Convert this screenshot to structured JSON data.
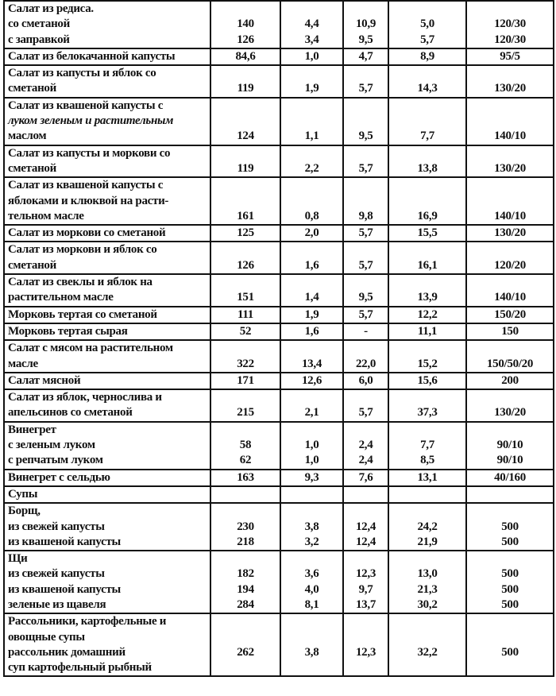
{
  "rows": [
    {
      "label": [
        "Салат из редиса.",
        "со сметаной",
        "с заправкой"
      ],
      "cols": [
        [
          "",
          "140",
          "126"
        ],
        [
          "",
          "4,4",
          "3,4"
        ],
        [
          "",
          "10,9",
          "9,5"
        ],
        [
          "",
          "5,0",
          "5,7"
        ],
        [
          "",
          "120/30",
          "120/30"
        ]
      ]
    },
    {
      "label": [
        "Салат из белокачанной капусты"
      ],
      "cols": [
        [
          "84,6"
        ],
        [
          "1,0"
        ],
        [
          "4,7"
        ],
        [
          "8,9"
        ],
        [
          "95/5"
        ]
      ]
    },
    {
      "label": [
        "Салат из капусты и яблок со",
        "сметаной"
      ],
      "cols": [
        [
          "",
          "119"
        ],
        [
          "",
          "1,9"
        ],
        [
          "",
          "5,7"
        ],
        [
          "",
          "14,3"
        ],
        [
          "",
          "130/20"
        ]
      ]
    },
    {
      "label": [
        "Салат из квашеной капусты с",
        "луком зеленым и растительным",
        "маслом"
      ],
      "cols": [
        [
          "",
          "",
          "124"
        ],
        [
          "",
          "",
          "1,1"
        ],
        [
          "",
          "",
          "9,5"
        ],
        [
          "",
          "",
          "7,7"
        ],
        [
          "",
          "",
          "140/10"
        ]
      ]
    },
    {
      "label": [
        "Салат из капусты и моркови со",
        "сметаной"
      ],
      "cols": [
        [
          "",
          "119"
        ],
        [
          "",
          "2,2"
        ],
        [
          "",
          "5,7"
        ],
        [
          "",
          "13,8"
        ],
        [
          "",
          "130/20"
        ]
      ]
    },
    {
      "label": [
        "Салат из квашеной капусты с",
        "яблоками и клюквой на расти-",
        "тельном масле"
      ],
      "cols": [
        [
          "",
          "",
          "161"
        ],
        [
          "",
          "",
          "0,8"
        ],
        [
          "",
          "",
          "9,8"
        ],
        [
          "",
          "",
          "16,9"
        ],
        [
          "",
          "",
          "140/10"
        ]
      ]
    },
    {
      "label": [
        "Салат из моркови со сметаной"
      ],
      "cols": [
        [
          "125"
        ],
        [
          "2,0"
        ],
        [
          "5,7"
        ],
        [
          "15,5"
        ],
        [
          "130/20"
        ]
      ]
    },
    {
      "label": [
        "Салат из моркови и яблок со",
        "сметаной"
      ],
      "cols": [
        [
          "",
          "126"
        ],
        [
          "",
          "1,6"
        ],
        [
          "",
          "5,7"
        ],
        [
          "",
          "16,1"
        ],
        [
          "",
          "120/20"
        ]
      ]
    },
    {
      "label": [
        "Салат из свеклы и яблок на",
        "растительном масле"
      ],
      "cols": [
        [
          "",
          "151"
        ],
        [
          "",
          "1,4"
        ],
        [
          "",
          "9,5"
        ],
        [
          "",
          "13,9"
        ],
        [
          "",
          "140/10"
        ]
      ]
    },
    {
      "label": [
        "Морковь тертая со сметаной"
      ],
      "cols": [
        [
          "111"
        ],
        [
          "1,9"
        ],
        [
          "5,7"
        ],
        [
          "12,2"
        ],
        [
          "150/20"
        ]
      ]
    },
    {
      "label": [
        "Морковь тертая сырая"
      ],
      "cols": [
        [
          "52"
        ],
        [
          "1,6"
        ],
        [
          "-"
        ],
        [
          "11,1"
        ],
        [
          "150"
        ]
      ]
    },
    {
      "label": [
        "Салат с мясом на растительном",
        "масле"
      ],
      "cols": [
        [
          "",
          "322"
        ],
        [
          "",
          "13,4"
        ],
        [
          "",
          "22,0"
        ],
        [
          "",
          "15,2"
        ],
        [
          "",
          "150/50/20"
        ]
      ]
    },
    {
      "label": [
        "Салат мясной"
      ],
      "cols": [
        [
          "171"
        ],
        [
          "12,6"
        ],
        [
          "6,0"
        ],
        [
          "15,6"
        ],
        [
          "200"
        ]
      ]
    },
    {
      "label": [
        "Салат из яблок, чернослива и",
        "апельсинов со сметаной"
      ],
      "cols": [
        [
          "",
          "215"
        ],
        [
          "",
          "2,1"
        ],
        [
          "",
          "5,7"
        ],
        [
          "",
          "37,3"
        ],
        [
          "",
          "130/20"
        ]
      ]
    },
    {
      "label": [
        "Винегрет",
        "с зеленым луком",
        "с репчатым луком"
      ],
      "cols": [
        [
          "",
          "58",
          "62"
        ],
        [
          "",
          "1,0",
          "1,0"
        ],
        [
          "",
          "2,4",
          "2,4"
        ],
        [
          "",
          "7,7",
          "8,5"
        ],
        [
          "",
          "90/10",
          "90/10"
        ]
      ]
    },
    {
      "label": [
        "Винегрет с сельдью"
      ],
      "cols": [
        [
          "163"
        ],
        [
          "9,3"
        ],
        [
          "7,6"
        ],
        [
          "13,1"
        ],
        [
          "40/160"
        ]
      ]
    },
    {
      "label": [
        "Супы"
      ],
      "cols": [
        [
          ""
        ],
        [
          ""
        ],
        [
          ""
        ],
        [
          ""
        ],
        [
          ""
        ]
      ]
    },
    {
      "label": [
        "Борщ,",
        "из свежей капусты",
        "из квашеной капусты"
      ],
      "cols": [
        [
          "",
          "230",
          "218"
        ],
        [
          "",
          "3,8",
          "3,2"
        ],
        [
          "",
          "12,4",
          "12,4"
        ],
        [
          "",
          "24,2",
          "21,9"
        ],
        [
          "",
          "500",
          "500"
        ]
      ]
    },
    {
      "label": [
        "Щи",
        "из свежей капусты",
        "из квашеной капусты",
        "зеленые из щавеля"
      ],
      "cols": [
        [
          "",
          "182",
          "194",
          "284"
        ],
        [
          "",
          "3,6",
          "4,0",
          "8,1"
        ],
        [
          "",
          "12,3",
          "9,7",
          "13,7"
        ],
        [
          "",
          "13,0",
          "21,3",
          "30,2"
        ],
        [
          "",
          "500",
          "500",
          "500"
        ]
      ]
    },
    {
      "label": [
        "Рассольники, картофельные и",
        "овощные супы",
        "рассольник домашний",
        "суп картофельный рыбный"
      ],
      "cols": [
        [
          "",
          "",
          "262",
          ""
        ],
        [
          "",
          "",
          "3,8",
          ""
        ],
        [
          "",
          "",
          "12,3",
          ""
        ],
        [
          "",
          "",
          "32,2",
          ""
        ],
        [
          "",
          "",
          "500",
          ""
        ]
      ]
    }
  ]
}
